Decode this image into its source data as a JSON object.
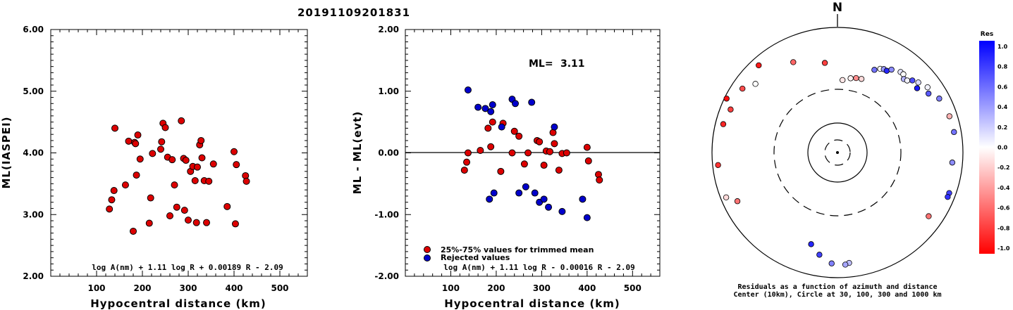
{
  "title": "20191109201831",
  "chart_data": [
    {
      "type": "scatter",
      "name": "ml-vs-distance",
      "xlabel": "Hypocentral distance (km)",
      "ylabel": "ML(IASPEI)",
      "xlim": [
        0,
        560
      ],
      "ylim": [
        2.0,
        6.0
      ],
      "xticks": [
        "100",
        "200",
        "300",
        "400",
        "500"
      ],
      "yticks": [
        "2.00",
        "3.00",
        "4.00",
        "5.00",
        "6.00"
      ],
      "formula": "log A(nm) + 1.11 log R + 0.00189 R - 2.09",
      "color": "#dd0000",
      "x": [
        128,
        133,
        138,
        140,
        163,
        170,
        180,
        183,
        185,
        187,
        190,
        195,
        215,
        218,
        222,
        240,
        242,
        245,
        250,
        255,
        260,
        265,
        270,
        275,
        285,
        290,
        292,
        295,
        300,
        305,
        310,
        315,
        318,
        320,
        325,
        328,
        330,
        335,
        340,
        345,
        355,
        385,
        400,
        403,
        405,
        425,
        427
      ],
      "y": [
        3.09,
        3.24,
        3.39,
        4.4,
        3.48,
        4.19,
        2.73,
        4.17,
        4.15,
        3.64,
        4.29,
        3.9,
        2.86,
        3.27,
        3.99,
        4.06,
        4.18,
        4.48,
        4.41,
        3.93,
        2.98,
        3.89,
        3.48,
        3.12,
        4.52,
        3.91,
        3.07,
        3.88,
        2.91,
        3.7,
        3.78,
        3.55,
        2.87,
        3.77,
        4.13,
        4.2,
        3.92,
        3.55,
        2.87,
        3.54,
        3.82,
        3.13,
        4.02,
        2.85,
        3.81,
        3.63,
        3.54
      ]
    },
    {
      "type": "scatter",
      "name": "residuals-vs-distance",
      "xlabel": "Hypocentral distance (km)",
      "ylabel": "ML - ML(evt)",
      "xlim": [
        0,
        560
      ],
      "ylim": [
        -2.0,
        2.0
      ],
      "xticks": [
        "100",
        "200",
        "300",
        "400",
        "500"
      ],
      "yticks": [
        "-2.00",
        "-1.00",
        "0.00",
        "1.00",
        "2.00"
      ],
      "ml_label": "ML=",
      "ml_value": "3.11",
      "formula": "log A(nm) + 1.11 log R - 0.00016 R - 2.09",
      "legend": [
        "25%-75% values for trimmed mean",
        "Rejected values"
      ],
      "series": [
        {
          "name": "25%-75% values for trimmed mean",
          "color": "#dd0000",
          "x": [
            130,
            135,
            138,
            165,
            182,
            188,
            192,
            210,
            215,
            235,
            240,
            250,
            262,
            270,
            290,
            295,
            305,
            310,
            318,
            325,
            328,
            338,
            345,
            355,
            400,
            403,
            425,
            427
          ],
          "y": [
            -0.28,
            -0.15,
            0.0,
            0.04,
            0.4,
            0.1,
            0.5,
            -0.3,
            0.48,
            0.0,
            0.35,
            0.27,
            -0.18,
            0.0,
            0.2,
            0.18,
            -0.2,
            0.03,
            0.02,
            0.33,
            0.15,
            -0.28,
            -0.01,
            0.0,
            0.09,
            -0.13,
            -0.35,
            -0.44
          ]
        },
        {
          "name": "Rejected values",
          "color": "#0000cc",
          "x": [
            138,
            160,
            176,
            185,
            188,
            192,
            195,
            212,
            235,
            242,
            250,
            265,
            278,
            285,
            295,
            305,
            315,
            328,
            345,
            390,
            400
          ],
          "y": [
            1.02,
            0.74,
            0.72,
            -0.75,
            0.67,
            0.78,
            -0.65,
            0.42,
            0.87,
            0.8,
            -0.65,
            -0.55,
            0.82,
            -0.65,
            -0.8,
            -0.75,
            -0.88,
            0.42,
            -0.95,
            -0.75,
            -1.05
          ]
        }
      ]
    },
    {
      "type": "polar-scatter",
      "name": "azimuth-residuals",
      "north_label": "N",
      "caption_line1": "Residuals as a function of azimuth and distance",
      "caption_line2": "Center (10km), Circle at 30, 100, 300 and 1000 km",
      "rings_km": [
        30,
        100,
        300,
        1000
      ],
      "colorbar": {
        "title": "Res",
        "ticks": [
          "1.0",
          "0.8",
          "0.6",
          "0.4",
          "0.2",
          "0.0",
          "-0.2",
          "-0.4",
          "-0.6",
          "-0.8",
          "-1.0"
        ],
        "max_color": "#0000ff",
        "zero_color": "#ffffff",
        "min_color": "#ff0000"
      },
      "points": [
        {
          "az": 352,
          "dist_km": 510,
          "res": -0.75
        },
        {
          "az": 4,
          "dist_km": 360,
          "res": -0.1
        },
        {
          "az": 10,
          "dist_km": 380,
          "res": -0.05
        },
        {
          "az": 14,
          "dist_km": 390,
          "res": -0.45
        },
        {
          "az": 18,
          "dist_km": 395,
          "res": -0.15
        },
        {
          "az": 24,
          "dist_km": 510,
          "res": 0.55
        },
        {
          "az": 27,
          "dist_km": 545,
          "res": 0.0
        },
        {
          "az": 29,
          "dist_km": 560,
          "res": 0.4
        },
        {
          "az": 31,
          "dist_km": 560,
          "res": 0.85
        },
        {
          "az": 33,
          "dist_km": 600,
          "res": 0.45
        },
        {
          "az": 38,
          "dist_km": 640,
          "res": 0.1
        },
        {
          "az": 40,
          "dist_km": 640,
          "res": 0.0
        },
        {
          "az": 42,
          "dist_km": 600,
          "res": 0.3
        },
        {
          "az": 44,
          "dist_km": 615,
          "res": 0.05
        },
        {
          "az": 46,
          "dist_km": 660,
          "res": 0.7
        },
        {
          "az": 49,
          "dist_km": 700,
          "res": 0.15
        },
        {
          "az": 51,
          "dist_km": 640,
          "res": 0.9
        },
        {
          "az": 54,
          "dist_km": 760,
          "res": 0.05
        },
        {
          "az": 57,
          "dist_km": 720,
          "res": 0.65
        },
        {
          "az": 62,
          "dist_km": 820,
          "res": 0.5
        },
        {
          "az": 72,
          "dist_km": 860,
          "res": -0.3
        },
        {
          "az": 80,
          "dist_km": 870,
          "res": 0.55
        },
        {
          "az": 95,
          "dist_km": 820,
          "res": 0.45
        },
        {
          "az": 110,
          "dist_km": 880,
          "res": 0.75
        },
        {
          "az": 112,
          "dist_km": 880,
          "res": 0.8
        },
        {
          "az": 125,
          "dist_km": 760,
          "res": -0.55
        },
        {
          "az": 174,
          "dist_km": 760,
          "res": 0.25
        },
        {
          "az": 176,
          "dist_km": 780,
          "res": 0.35
        },
        {
          "az": 183,
          "dist_km": 760,
          "res": 0.5
        },
        {
          "az": 190,
          "dist_km": 660,
          "res": 0.75
        },
        {
          "az": 196,
          "dist_km": 560,
          "res": 0.85
        },
        {
          "az": 244,
          "dist_km": 760,
          "res": -0.55
        },
        {
          "az": 248,
          "dist_km": 900,
          "res": -0.15
        },
        {
          "az": 264,
          "dist_km": 900,
          "res": -0.8
        },
        {
          "az": 284,
          "dist_km": 860,
          "res": -0.85
        },
        {
          "az": 292,
          "dist_km": 820,
          "res": -0.75
        },
        {
          "az": 296,
          "dist_km": 960,
          "res": -0.95
        },
        {
          "az": 304,
          "dist_km": 810,
          "res": -0.7
        },
        {
          "az": 310,
          "dist_km": 700,
          "res": 0.0
        },
        {
          "az": 318,
          "dist_km": 860,
          "res": -0.9
        },
        {
          "az": 334,
          "dist_km": 620,
          "res": -0.6
        }
      ]
    }
  ]
}
